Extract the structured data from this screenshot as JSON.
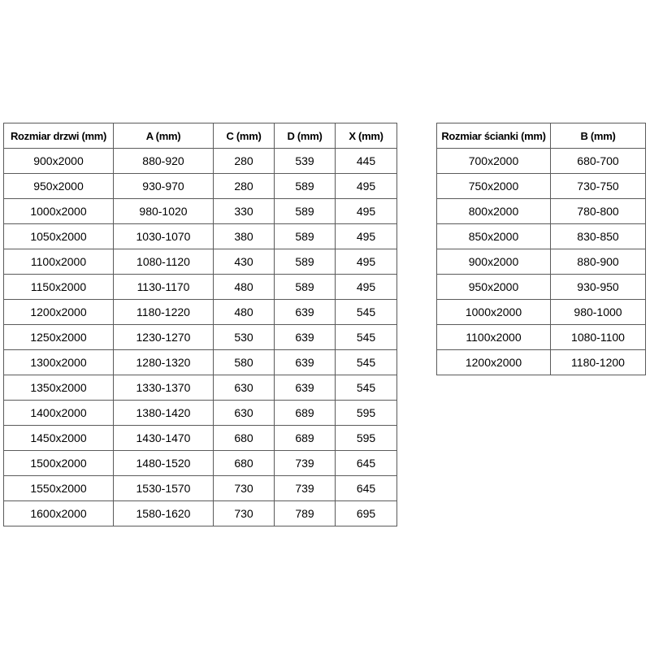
{
  "doors_table": {
    "headers": [
      "Rozmiar drzwi (mm)",
      "A (mm)",
      "C (mm)",
      "D (mm)",
      "X (mm)"
    ],
    "rows": [
      [
        "900x2000",
        "880-920",
        "280",
        "539",
        "445"
      ],
      [
        "950x2000",
        "930-970",
        "280",
        "589",
        "495"
      ],
      [
        "1000x2000",
        "980-1020",
        "330",
        "589",
        "495"
      ],
      [
        "1050x2000",
        "1030-1070",
        "380",
        "589",
        "495"
      ],
      [
        "1100x2000",
        "1080-1120",
        "430",
        "589",
        "495"
      ],
      [
        "1150x2000",
        "1130-1170",
        "480",
        "589",
        "495"
      ],
      [
        "1200x2000",
        "1180-1220",
        "480",
        "639",
        "545"
      ],
      [
        "1250x2000",
        "1230-1270",
        "530",
        "639",
        "545"
      ],
      [
        "1300x2000",
        "1280-1320",
        "580",
        "639",
        "545"
      ],
      [
        "1350x2000",
        "1330-1370",
        "630",
        "639",
        "545"
      ],
      [
        "1400x2000",
        "1380-1420",
        "630",
        "689",
        "595"
      ],
      [
        "1450x2000",
        "1430-1470",
        "680",
        "689",
        "595"
      ],
      [
        "1500x2000",
        "1480-1520",
        "680",
        "739",
        "645"
      ],
      [
        "1550x2000",
        "1530-1570",
        "730",
        "739",
        "645"
      ],
      [
        "1600x2000",
        "1580-1620",
        "730",
        "789",
        "695"
      ]
    ]
  },
  "walls_table": {
    "headers": [
      "Rozmiar ścianki (mm)",
      "B (mm)"
    ],
    "rows": [
      [
        "700x2000",
        "680-700"
      ],
      [
        "750x2000",
        "730-750"
      ],
      [
        "800x2000",
        "780-800"
      ],
      [
        "850x2000",
        "830-850"
      ],
      [
        "900x2000",
        "880-900"
      ],
      [
        "950x2000",
        "930-950"
      ],
      [
        "1000x2000",
        "980-1000"
      ],
      [
        "1100x2000",
        "1080-1100"
      ],
      [
        "1200x2000",
        "1180-1200"
      ]
    ]
  },
  "colors": {
    "border": "#5b5b5b",
    "text": "#000000",
    "background": "#ffffff"
  }
}
